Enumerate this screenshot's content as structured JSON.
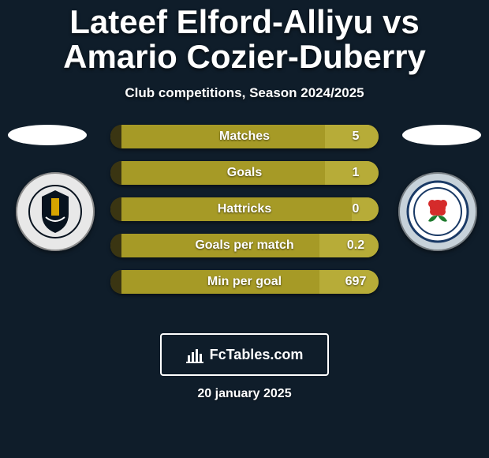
{
  "background_color": "#0f1d2a",
  "title": {
    "text": "Lateef Elford-Alliyu vs Amario Cozier-Duberry",
    "color": "#ffffff",
    "fontsize": 42
  },
  "subtitle": {
    "text": "Club competitions, Season 2024/2025",
    "color": "#ffffff",
    "fontsize": 17
  },
  "left_crest": {
    "bg": "#e8e8e8",
    "accent": "#08131f",
    "motto_arc": "#08131f"
  },
  "right_crest": {
    "bg": "#c7d2da",
    "accent": "#1a3a66",
    "flower": "#d52b2b",
    "leaf": "#1e7a2e"
  },
  "bars": {
    "track_color": "#a69a26",
    "left_fill_color": "#3a3512",
    "right_fill_color": "#b7ac38",
    "label_color": "#ffffff",
    "value_color": "#ffffff",
    "label_fontsize": 16,
    "value_fontsize": 16,
    "rows": [
      {
        "label": "Matches",
        "left_val": "",
        "right_val": "5",
        "left_pct": 4,
        "right_pct": 20
      },
      {
        "label": "Goals",
        "left_val": "",
        "right_val": "1",
        "left_pct": 4,
        "right_pct": 20
      },
      {
        "label": "Hattricks",
        "left_val": "",
        "right_val": "0",
        "left_pct": 4,
        "right_pct": 10
      },
      {
        "label": "Goals per match",
        "left_val": "",
        "right_val": "0.2",
        "left_pct": 4,
        "right_pct": 22
      },
      {
        "label": "Min per goal",
        "left_val": "",
        "right_val": "697",
        "left_pct": 4,
        "right_pct": 22
      }
    ]
  },
  "badge": {
    "text": "FcTables.com",
    "text_color": "#ffffff",
    "icon_color": "#ffffff"
  },
  "date": {
    "text": "20 january 2025",
    "color": "#ffffff",
    "fontsize": 16
  }
}
